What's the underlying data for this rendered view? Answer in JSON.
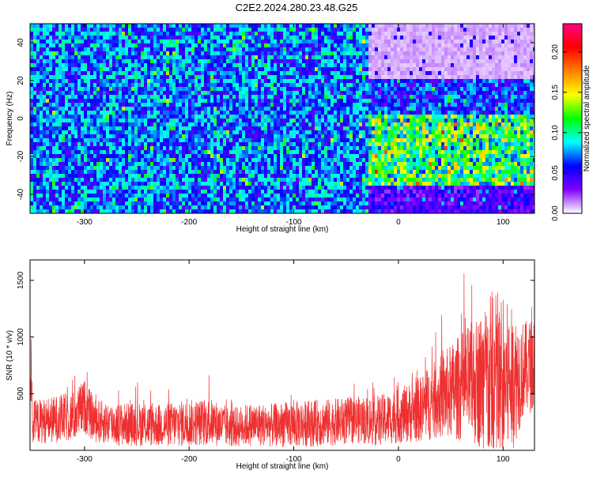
{
  "title": "C2E2.2024.280.23.48.G25",
  "chart_data": [
    {
      "type": "heatmap",
      "xlabel": "Height of straight line (km)",
      "ylabel": "Frequency (Hz)",
      "xlim": [
        -352,
        130
      ],
      "ylim": [
        -50,
        50
      ],
      "xticks": [
        -300,
        -200,
        -100,
        0,
        100
      ],
      "yticks": [
        -40,
        -20,
        0,
        20,
        40
      ],
      "colorbar": {
        "label": "Normalized spectral amplitude",
        "range": [
          0.0,
          0.235
        ],
        "ticks": [
          0.0,
          0.05,
          0.1,
          0.15,
          0.2
        ],
        "tick_labels": [
          "0.00",
          "0.05",
          "0.10",
          "0.15",
          "0.20"
        ],
        "colors": [
          "#ffffff",
          "#8000ff",
          "#0000ff",
          "#00ffff",
          "#00ff00",
          "#ffff00",
          "#ff8000",
          "#ff0000",
          "#ff0080"
        ]
      },
      "regions": [
        {
          "x": [
            -352,
            -30
          ],
          "y": [
            -50,
            50
          ],
          "level": 0.07
        },
        {
          "x": [
            -30,
            130
          ],
          "y": [
            -35,
            3
          ],
          "level": 0.11
        },
        {
          "x": [
            -30,
            130
          ],
          "y": [
            22,
            50
          ],
          "level": 0.01
        },
        {
          "x": [
            -30,
            130
          ],
          "y": [
            -50,
            -35
          ],
          "level": 0.04
        }
      ]
    },
    {
      "type": "line",
      "xlabel": "Height of straight line (km)",
      "ylabel": "SNR (10 * v/v)",
      "xlim": [
        -352,
        130
      ],
      "ylim": [
        0,
        1680
      ],
      "xticks": [
        -300,
        -200,
        -100,
        0,
        100
      ],
      "yticks": [
        500,
        1000,
        1500
      ],
      "color": "#ee3030",
      "series": [
        {
          "x": [
            -350,
            -330,
            -310,
            -300,
            -290,
            -270,
            -250,
            -230,
            -200,
            -180,
            -160,
            -140,
            -120,
            -100,
            -80,
            -60,
            -40,
            -20,
            0,
            20,
            40,
            60,
            80,
            90,
            100,
            110,
            120,
            130
          ],
          "mean": [
            250,
            270,
            300,
            390,
            260,
            230,
            230,
            220,
            240,
            250,
            200,
            230,
            220,
            230,
            240,
            250,
            270,
            260,
            300,
            360,
            470,
            560,
            620,
            600,
            600,
            620,
            720,
            760
          ],
          "spread": [
            120,
            130,
            140,
            150,
            120,
            120,
            120,
            120,
            130,
            130,
            110,
            120,
            120,
            130,
            130,
            130,
            130,
            140,
            150,
            180,
            230,
            300,
            380,
            520,
            480,
            380,
            260,
            260
          ]
        }
      ]
    }
  ]
}
